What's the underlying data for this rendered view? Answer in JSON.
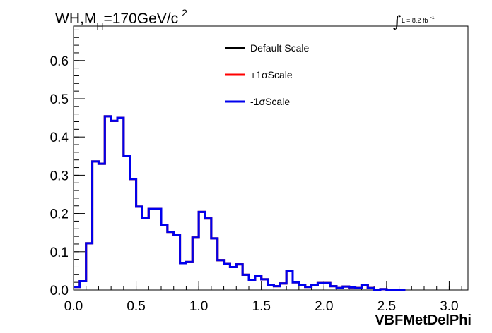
{
  "chart_data": {
    "type": "step-histogram",
    "title": {
      "main": "WH,M",
      "subscript": "H",
      "rest": "=170GeV/c",
      "superscript": "2"
    },
    "luminosity": {
      "integral_symbol": "∫",
      "text": "L = 8.2 fb",
      "superscript": "-1"
    },
    "xlabel": "VBFMetDelPhi",
    "ylabel": "",
    "xlim": [
      0.0,
      3.15
    ],
    "ylim": [
      0.0,
      0.69
    ],
    "x_major_ticks": [
      0.0,
      0.5,
      1.0,
      1.5,
      2.0,
      2.5,
      3.0
    ],
    "x_tick_labels": [
      "0.0",
      "0.5",
      "1.0",
      "1.5",
      "2.0",
      "2.5",
      "3.0"
    ],
    "y_major_ticks": [
      0.0,
      0.1,
      0.2,
      0.3,
      0.4,
      0.5,
      0.6
    ],
    "y_tick_labels": [
      "0.0",
      "0.1",
      "0.2",
      "0.3",
      "0.4",
      "0.5",
      "0.6"
    ],
    "x_minor_step": 0.1,
    "y_minor_step": 0.02,
    "grid": false,
    "legend_position": "top-center",
    "bin_width": 0.05,
    "bin_start": 0.0,
    "series": [
      {
        "name": "Default Scale",
        "color": "#000000",
        "values": [
          0.008,
          0.023,
          0.122,
          0.336,
          0.33,
          0.454,
          0.442,
          0.45,
          0.35,
          0.29,
          0.218,
          0.188,
          0.212,
          0.212,
          0.17,
          0.152,
          0.143,
          0.07,
          0.073,
          0.137,
          0.204,
          0.187,
          0.135,
          0.078,
          0.068,
          0.06,
          0.067,
          0.04,
          0.025,
          0.036,
          0.028,
          0.012,
          0.01,
          0.017,
          0.05,
          0.02,
          0.012,
          0.008,
          0.013,
          0.018,
          0.018,
          0.01,
          0.005,
          0.009,
          0.007,
          0.005,
          0.012,
          0.005,
          0.001,
          0.002,
          0.001,
          0.001,
          0.001
        ]
      },
      {
        "name": "+1σScale",
        "color": "#ff0000",
        "values": [
          0.008,
          0.023,
          0.122,
          0.336,
          0.33,
          0.454,
          0.442,
          0.45,
          0.35,
          0.29,
          0.218,
          0.188,
          0.212,
          0.212,
          0.17,
          0.152,
          0.143,
          0.07,
          0.073,
          0.137,
          0.204,
          0.187,
          0.135,
          0.078,
          0.068,
          0.06,
          0.067,
          0.04,
          0.025,
          0.036,
          0.028,
          0.012,
          0.01,
          0.017,
          0.05,
          0.02,
          0.012,
          0.008,
          0.013,
          0.018,
          0.018,
          0.01,
          0.005,
          0.009,
          0.007,
          0.005,
          0.012,
          0.005,
          0.001,
          0.002,
          0.001,
          0.001,
          0.001
        ]
      },
      {
        "name": "-1σScale",
        "color": "#0000ee",
        "values": [
          0.008,
          0.023,
          0.122,
          0.336,
          0.33,
          0.454,
          0.442,
          0.45,
          0.35,
          0.29,
          0.218,
          0.188,
          0.212,
          0.212,
          0.17,
          0.152,
          0.143,
          0.07,
          0.073,
          0.137,
          0.204,
          0.187,
          0.135,
          0.078,
          0.068,
          0.06,
          0.067,
          0.04,
          0.025,
          0.036,
          0.028,
          0.012,
          0.01,
          0.017,
          0.05,
          0.02,
          0.012,
          0.008,
          0.013,
          0.018,
          0.018,
          0.01,
          0.005,
          0.009,
          0.007,
          0.005,
          0.012,
          0.005,
          0.001,
          0.002,
          0.001,
          0.001,
          0.001
        ]
      }
    ]
  }
}
